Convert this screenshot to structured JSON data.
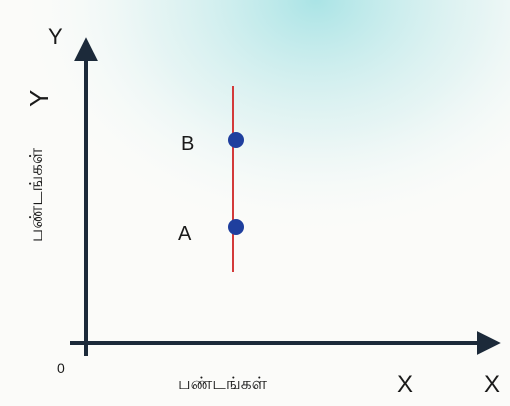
{
  "diagram": {
    "y_axis_top_label": "Y",
    "y_axis_side_letter": "Y",
    "y_axis_tamil_label": "பண்டங்கள்",
    "origin_label": "0",
    "x_axis_tamil_label": "பண்டங்கள்",
    "x_axis_letter": "X",
    "x_axis_end_label": "X",
    "point_a_label": "A",
    "point_b_label": "B",
    "colors": {
      "axis": "#1c2a3a",
      "line": "#d33a3a",
      "point": "#1f3f9e",
      "wash": "#7fd3d8"
    }
  }
}
